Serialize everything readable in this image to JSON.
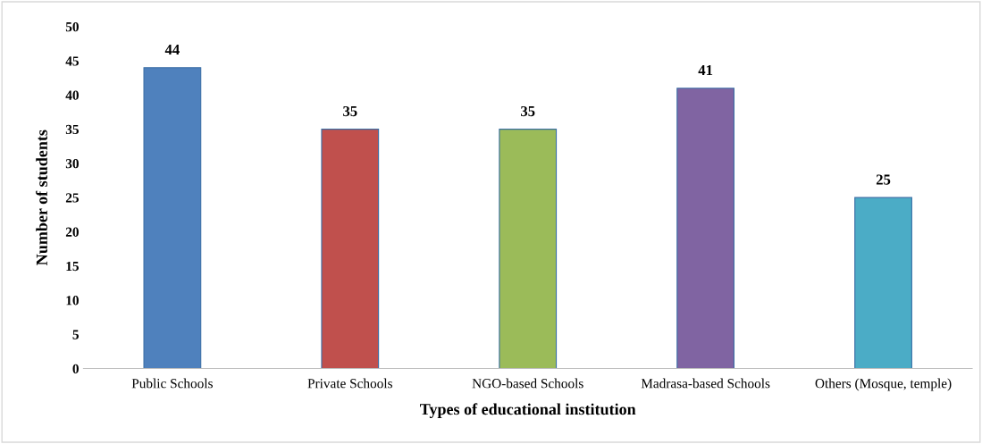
{
  "chart_data": {
    "type": "bar",
    "xlabel": "Types of educational institution",
    "ylabel": "Number of students",
    "categories": [
      "Public Schools",
      "Private Schools",
      "NGO-based Schools",
      "Madrasa-based Schools",
      "Others (Mosque, temple)"
    ],
    "values": [
      44,
      35,
      35,
      41,
      25
    ],
    "colors": [
      "#4f81bd",
      "#c0504d",
      "#9bbb59",
      "#8064a2",
      "#4bacc6"
    ],
    "ylim": [
      0,
      50
    ],
    "yticks": [
      0,
      5,
      10,
      15,
      20,
      25,
      30,
      35,
      40,
      45,
      50
    ],
    "data_labels": true,
    "grid": false,
    "legend": false
  }
}
